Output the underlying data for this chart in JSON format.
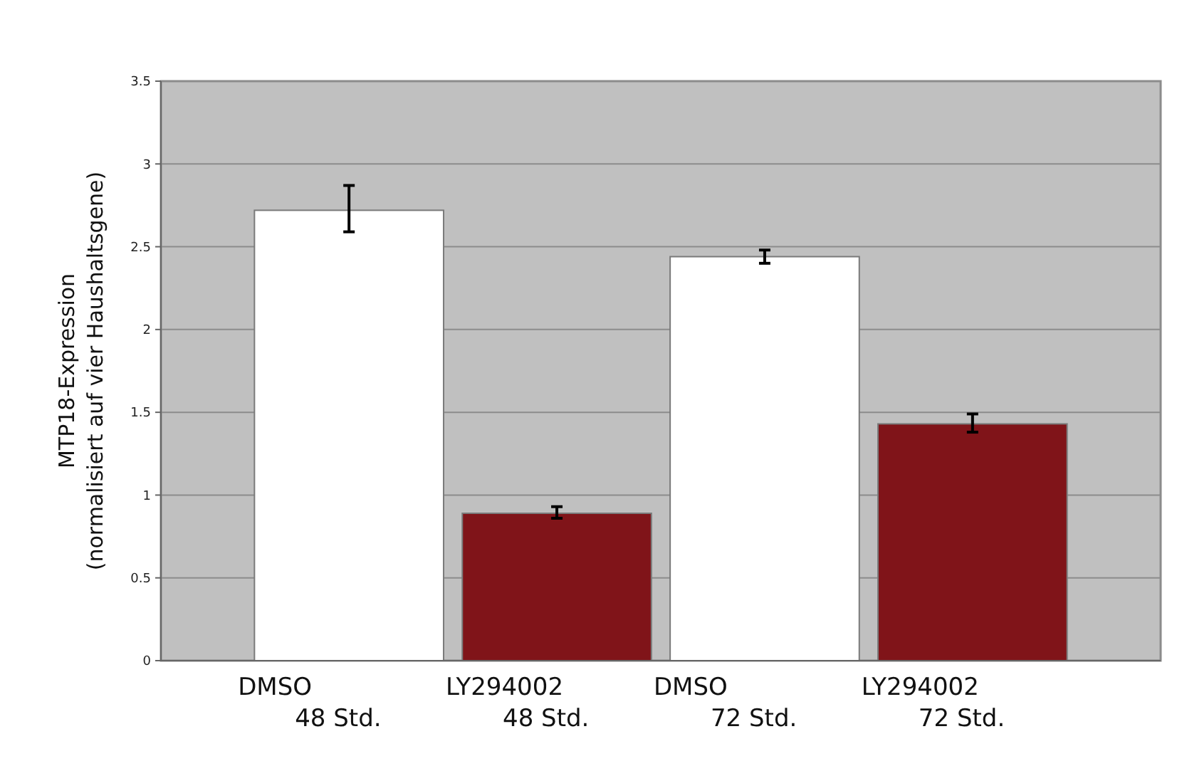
{
  "chart_data": {
    "type": "bar",
    "ylabel": "MTP18-Expression\n(normalisiert auf vier Haushaltsgene)",
    "categories": [
      "DMSO\n48 Std.",
      "LY294002\n48 Std.",
      "DMSO\n72 Std.",
      "LY294002\n72 Std."
    ],
    "values": [
      2.72,
      0.89,
      2.44,
      1.43
    ],
    "colors": [
      "#ffffff",
      "#801419",
      "#ffffff",
      "#801419"
    ],
    "errors": [
      [
        2.59,
        2.87
      ],
      [
        0.86,
        0.93
      ],
      [
        2.4,
        2.48
      ],
      [
        1.38,
        1.49
      ]
    ],
    "ylim": [
      0,
      3.5
    ],
    "yticks": [
      0,
      0.5,
      1,
      1.5,
      2,
      2.5,
      3,
      3.5
    ],
    "grid": "y"
  }
}
